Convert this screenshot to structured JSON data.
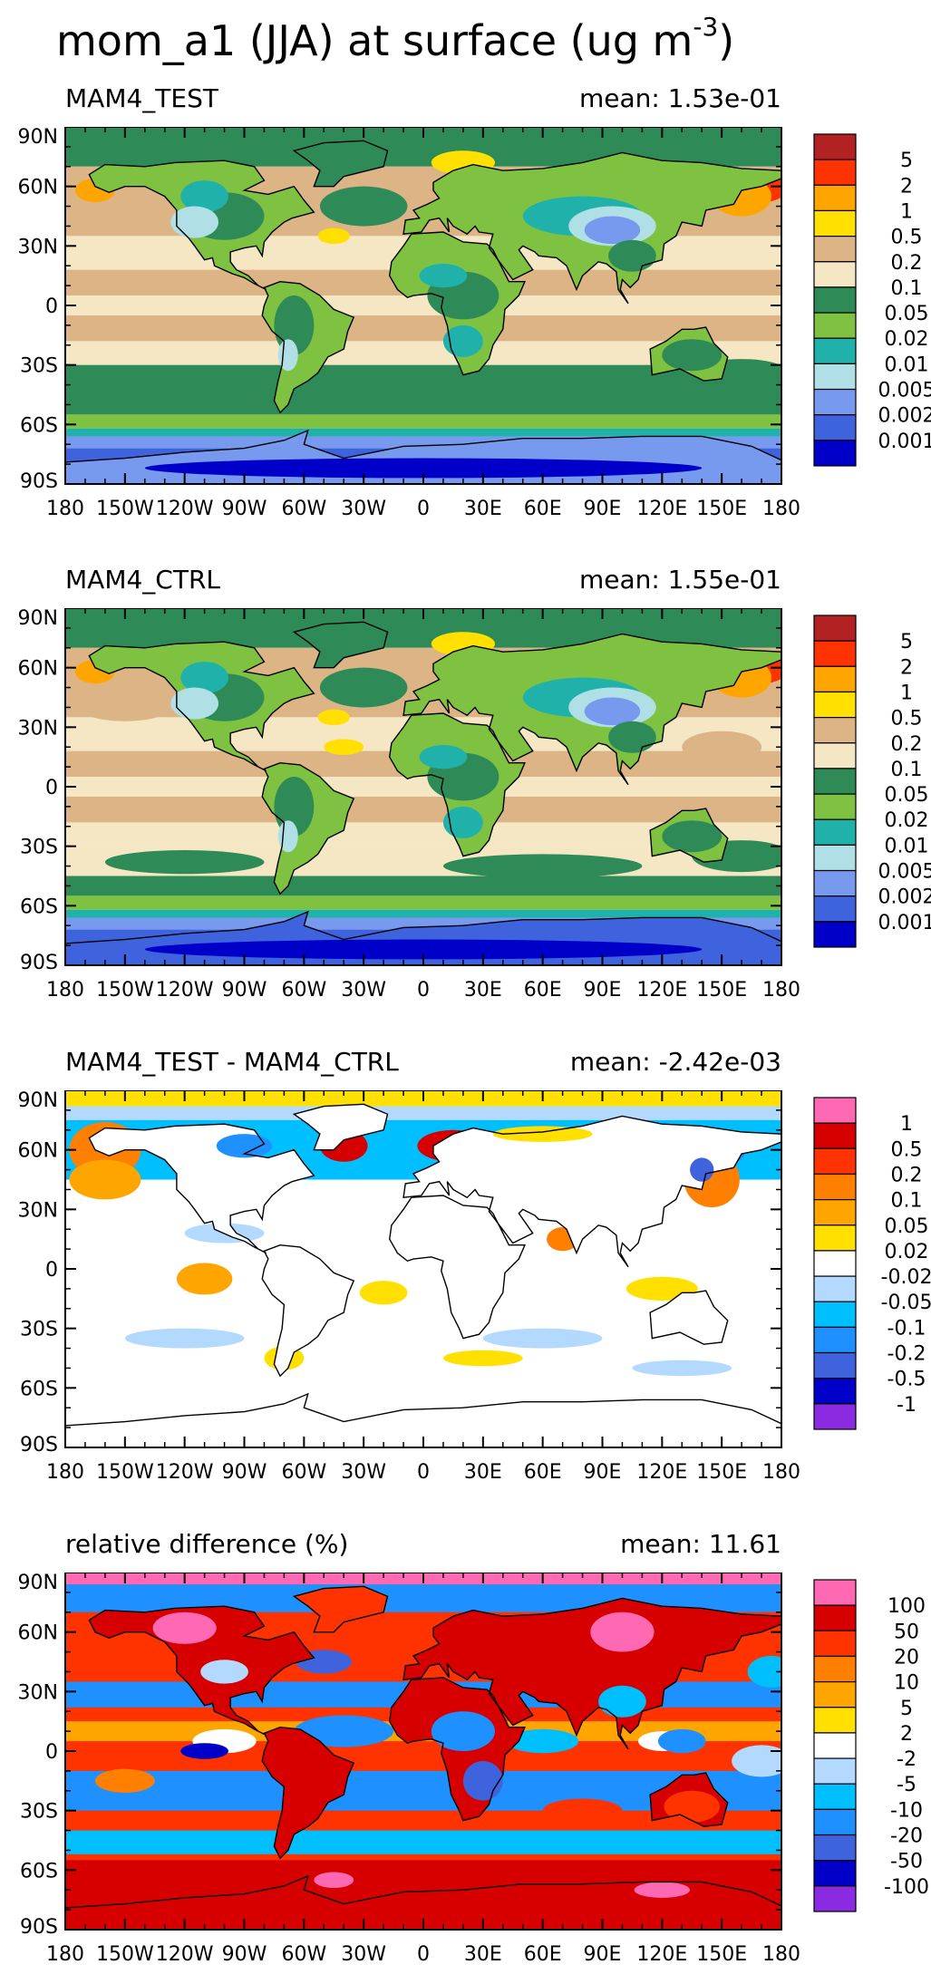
{
  "title": "mom_a1 (JJA) at surface (ug m",
  "title_exponent": "-3",
  "title_close": ")",
  "lat_labels": [
    "90N",
    "60N",
    "30N",
    "0",
    "30S",
    "60S",
    "90S"
  ],
  "lon_labels": [
    "180",
    "150W",
    "120W",
    "90W",
    "60W",
    "30W",
    "0",
    "30E",
    "60E",
    "90E",
    "120E",
    "150E",
    "180"
  ],
  "panels": [
    {
      "label": "MAM4_TEST",
      "mean": "mean: 1.53e-01",
      "kind": "abs",
      "legend_labels": [
        "5",
        "2",
        "1",
        "0.5",
        "0.2",
        "0.1",
        "0.05",
        "0.02",
        "0.01",
        "0.005",
        "0.002",
        "0.001"
      ],
      "legend_colors": [
        "#b22222",
        "#ff3300",
        "#ffa500",
        "#ffe000",
        "#dcb486",
        "#f5e6c4",
        "#2e8b57",
        "#7fc241",
        "#20b2aa",
        "#b0e0e6",
        "#7799ee",
        "#3f63dd",
        "#0000c8"
      ]
    },
    {
      "label": "MAM4_CTRL",
      "mean": "mean: 1.55e-01",
      "kind": "abs",
      "legend_labels": [
        "5",
        "2",
        "1",
        "0.5",
        "0.2",
        "0.1",
        "0.05",
        "0.02",
        "0.01",
        "0.005",
        "0.002",
        "0.001"
      ],
      "legend_colors": [
        "#b22222",
        "#ff3300",
        "#ffa500",
        "#ffe000",
        "#dcb486",
        "#f5e6c4",
        "#2e8b57",
        "#7fc241",
        "#20b2aa",
        "#b0e0e6",
        "#7799ee",
        "#3f63dd",
        "#0000c8"
      ]
    },
    {
      "label": "MAM4_TEST - MAM4_CTRL",
      "mean": "mean: -2.42e-03",
      "kind": "diff",
      "legend_labels": [
        "1",
        "0.5",
        "0.2",
        "0.1",
        "0.05",
        "0.02",
        "-0.02",
        "-0.05",
        "-0.1",
        "-0.2",
        "-0.5",
        "-1"
      ],
      "legend_colors": [
        "#ff69b4",
        "#d70000",
        "#ff3300",
        "#ff7f00",
        "#ffa500",
        "#ffe000",
        "#ffffff",
        "#b3d9ff",
        "#00bfff",
        "#1e90ff",
        "#3f63dd",
        "#0000c8",
        "#8a2be2"
      ]
    },
    {
      "label": "relative difference (%)",
      "mean": "mean: 11.61",
      "kind": "rel",
      "legend_labels": [
        "100",
        "50",
        "20",
        "10",
        "5",
        "2",
        "-2",
        "-5",
        "-10",
        "-20",
        "-50",
        "-100"
      ],
      "legend_colors": [
        "#ff69b4",
        "#d70000",
        "#ff3300",
        "#ff7f00",
        "#ffa500",
        "#ffe000",
        "#ffffff",
        "#b3d9ff",
        "#00bfff",
        "#1e90ff",
        "#3f63dd",
        "#0000c8",
        "#8a2be2"
      ]
    }
  ]
}
